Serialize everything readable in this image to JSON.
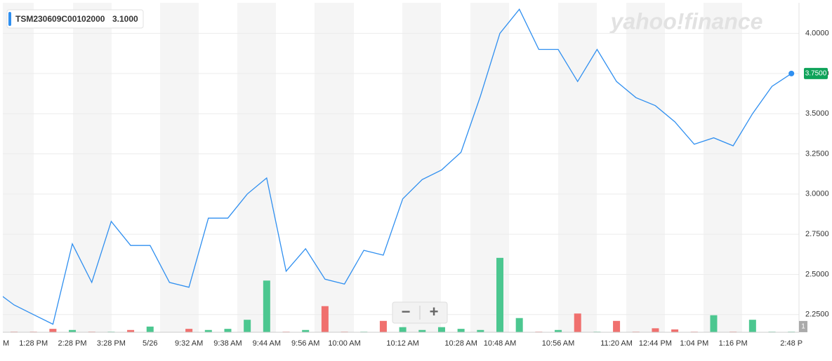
{
  "chart_data": {
    "type": "line",
    "title": "TSM230609C00102000",
    "legend_value": "3.1000",
    "watermark": "yahoo!finance",
    "categories": [
      "M",
      null,
      "1:28 PM",
      null,
      "2:28 PM",
      null,
      "3:28 PM",
      null,
      "5/26",
      null,
      "9:32 AM",
      null,
      "9:38 AM",
      null,
      "9:44 AM",
      null,
      "9:56 AM",
      null,
      "10:00 AM",
      null,
      null,
      "10:12 AM",
      null,
      null,
      "10:28 AM",
      null,
      "10:48 AM",
      null,
      null,
      "10:56 AM",
      null,
      null,
      "11:20 AM",
      null,
      "12:44 PM",
      null,
      "1:04 PM",
      null,
      "1:16 PM",
      null,
      null,
      "2:48 P"
    ],
    "series": [
      {
        "name": "TSM230609C00102000",
        "color": "#2f8ff0",
        "values": [
          2.4,
          2.31,
          2.25,
          2.19,
          2.69,
          2.45,
          2.83,
          2.68,
          2.68,
          2.45,
          2.42,
          2.85,
          2.85,
          3.0,
          3.1,
          2.52,
          2.66,
          2.47,
          2.44,
          2.65,
          2.62,
          2.97,
          3.09,
          3.15,
          3.26,
          3.61,
          4.0,
          4.15,
          3.9,
          3.9,
          3.7,
          3.9,
          3.7,
          3.6,
          3.55,
          3.45,
          3.31,
          3.35,
          3.3,
          3.5,
          3.67,
          3.75
        ]
      },
      {
        "name": "Volume",
        "type": "bar",
        "axis": "y2",
        "up_color": "#4cc790",
        "down_color": "#f0706e",
        "values": [
          0,
          0.1,
          0.1,
          0.6,
          0.4,
          0.1,
          0.1,
          0.4,
          1,
          0,
          0.6,
          0.4,
          0.6,
          2.2,
          9.1,
          0.1,
          0.4,
          4.6,
          0.1,
          0.1,
          2,
          0.9,
          0.4,
          0.9,
          0.6,
          0.4,
          13.1,
          2.5,
          0.1,
          0.4,
          3.3,
          0.1,
          2,
          0.1,
          0.7,
          0.5,
          0.1,
          3,
          0.1,
          2.2,
          0.1,
          0.1
        ]
      }
    ],
    "last_value_label": "3.7500",
    "last_value_color": "#0fa35a",
    "ylim": [
      2.14,
      4.19
    ],
    "yticks": [
      {
        "value": 2.25,
        "label": "2.2500"
      },
      {
        "value": 2.5,
        "label": "2.5000"
      },
      {
        "value": 2.75,
        "label": "2.7500"
      },
      {
        "value": 3,
        "label": "3.0000"
      },
      {
        "value": 3.25,
        "label": "3.2500"
      },
      {
        "value": 3.5,
        "label": "3.5000"
      },
      {
        "value": 3.75,
        "label": "3.7500"
      },
      {
        "value": 4,
        "label": "4.0000"
      }
    ],
    "y2lim": [
      0,
      58
    ],
    "y2ticks": [
      1
    ],
    "grid": true,
    "controls": [
      "−",
      "+"
    ]
  }
}
